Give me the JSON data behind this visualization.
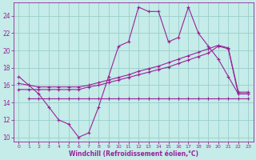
{
  "xlabel": "Windchill (Refroidissement éolien,°C)",
  "xlim": [
    -0.5,
    23.5
  ],
  "ylim": [
    9.5,
    25.5
  ],
  "yticks": [
    10,
    12,
    14,
    16,
    18,
    20,
    22,
    24
  ],
  "xticks": [
    0,
    1,
    2,
    3,
    4,
    5,
    6,
    7,
    8,
    9,
    10,
    11,
    12,
    13,
    14,
    15,
    16,
    17,
    18,
    19,
    20,
    21,
    22,
    23
  ],
  "bg_color": "#c5ece8",
  "line_color": "#992299",
  "grid_color": "#99cccc",
  "line1_x": [
    0,
    1,
    2,
    3,
    4,
    5,
    6,
    7,
    8,
    9,
    10,
    11,
    12,
    13,
    14,
    15,
    16,
    17,
    18,
    19,
    20,
    21,
    22,
    23
  ],
  "line1_y": [
    17.0,
    16.0,
    15.0,
    13.5,
    12.0,
    11.5,
    10.0,
    10.5,
    13.5,
    17.0,
    20.5,
    21.0,
    25.0,
    24.5,
    24.5,
    21.0,
    21.5,
    25.0,
    22.0,
    20.5,
    19.0,
    17.0,
    15.0,
    15.0
  ],
  "line2_x": [
    0,
    1,
    2,
    3,
    4,
    5,
    6,
    7,
    8,
    9,
    10,
    11,
    12,
    13,
    14,
    15,
    16,
    17,
    18,
    19,
    20,
    21,
    22,
    23
  ],
  "line2_y": [
    15.5,
    15.5,
    15.5,
    15.5,
    15.5,
    15.5,
    15.5,
    15.8,
    16.0,
    16.3,
    16.6,
    16.9,
    17.2,
    17.5,
    17.8,
    18.1,
    18.5,
    18.9,
    19.3,
    19.7,
    20.5,
    20.2,
    15.0,
    15.0
  ],
  "line3_x": [
    0,
    1,
    2,
    3,
    4,
    5,
    6,
    7,
    8,
    9,
    10,
    11,
    12,
    13,
    14,
    15,
    16,
    17,
    18,
    19,
    20,
    21,
    22,
    23
  ],
  "line3_y": [
    16.2,
    16.0,
    15.8,
    15.8,
    15.8,
    15.8,
    15.8,
    16.0,
    16.3,
    16.6,
    16.9,
    17.2,
    17.6,
    17.9,
    18.2,
    18.6,
    19.0,
    19.4,
    19.8,
    20.2,
    20.6,
    20.3,
    15.2,
    15.2
  ],
  "line4_x": [
    1,
    2,
    3,
    4,
    5,
    6,
    7,
    8,
    9,
    10,
    11,
    12,
    13,
    14,
    15,
    16,
    17,
    18,
    19,
    20,
    21,
    22,
    23
  ],
  "line4_y": [
    14.5,
    14.5,
    14.5,
    14.5,
    14.5,
    14.5,
    14.5,
    14.5,
    14.5,
    14.5,
    14.5,
    14.5,
    14.5,
    14.5,
    14.5,
    14.5,
    14.5,
    14.5,
    14.5,
    14.5,
    14.5,
    14.5,
    14.5
  ]
}
